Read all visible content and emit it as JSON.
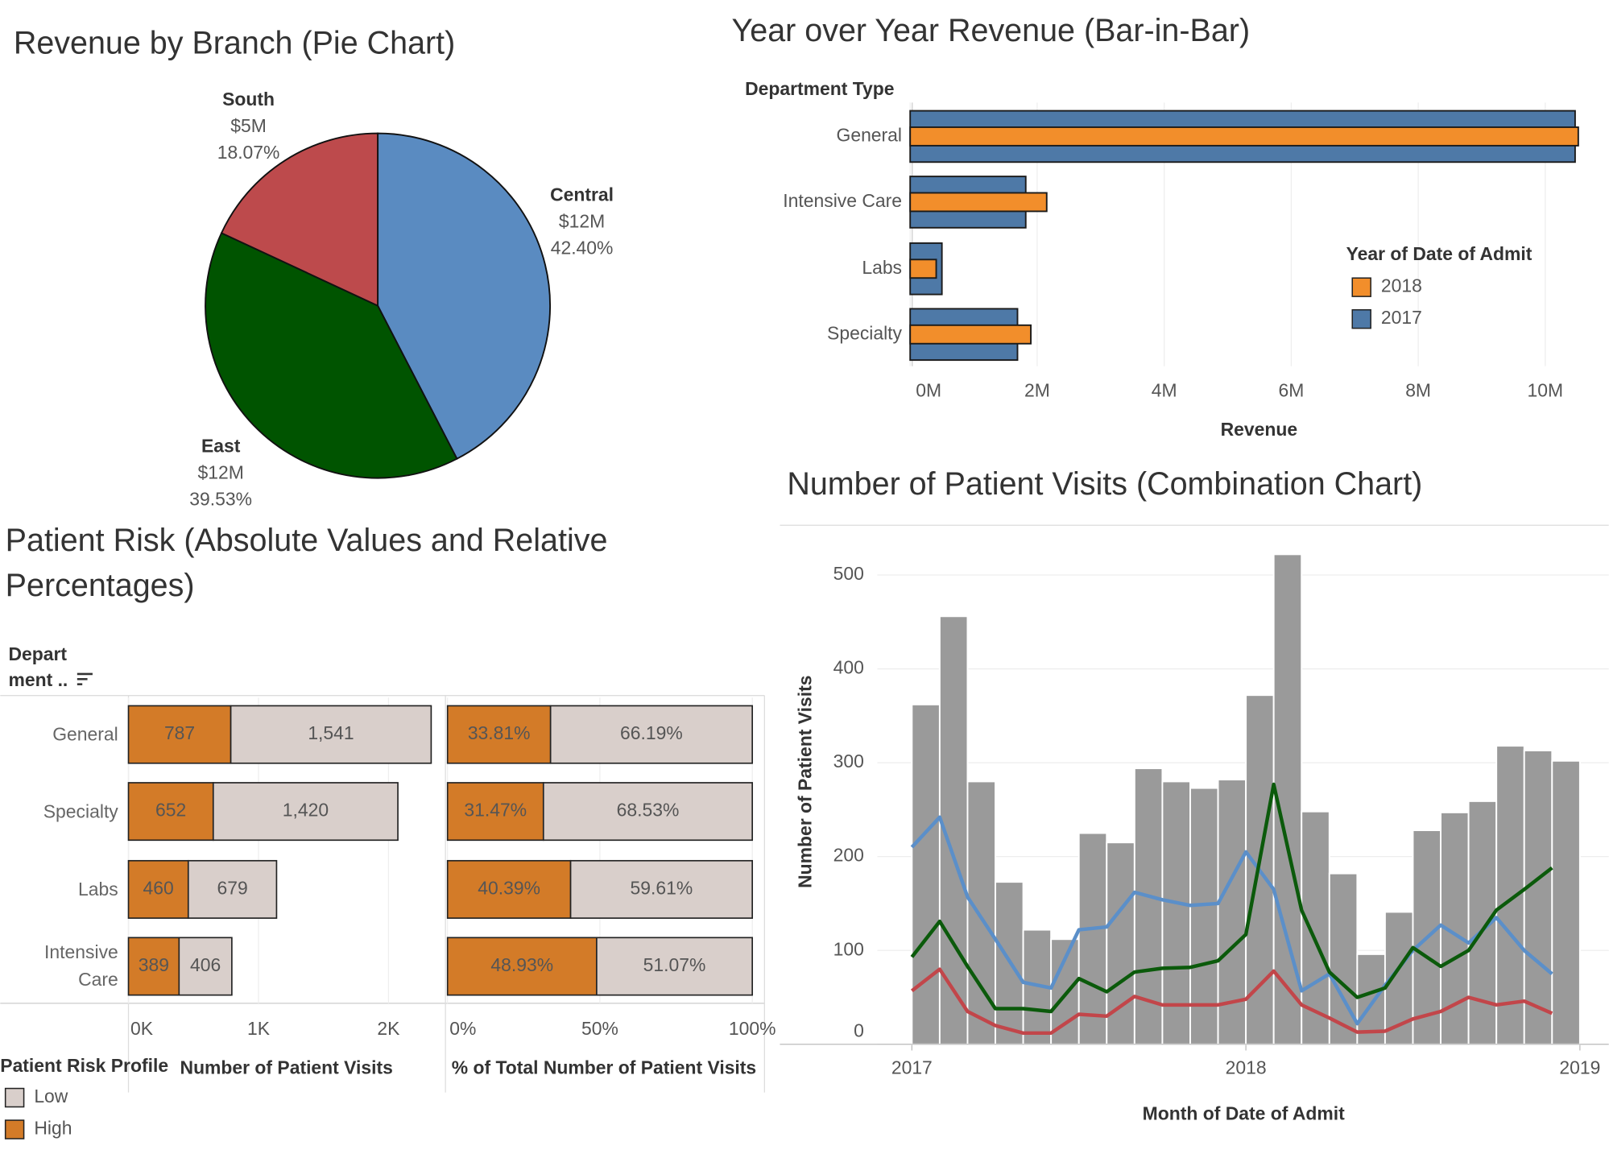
{
  "chart_data": [
    {
      "type": "pie",
      "title": "Revenue by Branch (Pie Chart)",
      "categories": [
        "Central",
        "East",
        "South"
      ],
      "values": [
        42.4,
        39.53,
        18.07
      ],
      "value_labels": [
        "42.40%",
        "39.53%",
        "18.07%"
      ],
      "revenue_labels": [
        "$12M",
        "$12M",
        "$5M"
      ],
      "colors": [
        "#5a8bc1",
        "#005400",
        "#bd4a4c"
      ]
    },
    {
      "type": "bar-in-bar",
      "title": "Year over Year Revenue (Bar-in-Bar)",
      "category_header": "Department Type",
      "x_label": "Revenue",
      "legend_title": "Year of Date of Admit",
      "categories": [
        "General",
        "Intensive Care",
        "Labs",
        "Specialty"
      ],
      "series": [
        {
          "name": "2018",
          "color": "#f28e2b",
          "values": [
            10520000,
            2150000,
            410000,
            1900000
          ]
        },
        {
          "name": "2017",
          "color": "#4e79a7",
          "values": [
            10470000,
            1820000,
            500000,
            1690000
          ]
        }
      ],
      "xlim": [
        0,
        11000000
      ],
      "xticks": [
        {
          "value": 0,
          "label": "0M"
        },
        {
          "value": 2000000,
          "label": "2M"
        },
        {
          "value": 4000000,
          "label": "4M"
        },
        {
          "value": 6000000,
          "label": "6M"
        },
        {
          "value": 8000000,
          "label": "8M"
        },
        {
          "value": 10000000,
          "label": "10M"
        }
      ],
      "grid": true
    },
    {
      "type": "stacked-bar",
      "title": "Patient Risk (Absolute Values and Relative Percentages)",
      "row_header_lines": [
        "Depart",
        "ment .."
      ],
      "x_label": "Number of Patient Visits",
      "legend_title": "Patient Risk Profile",
      "categories": [
        "General",
        "Specialty",
        "Labs",
        "Intensive Care"
      ],
      "series": [
        {
          "name": "High",
          "color": "#d37b28",
          "values": [
            787,
            652,
            460,
            389
          ]
        },
        {
          "name": "Low",
          "color": "#d9cfcb",
          "values": [
            1541,
            1420,
            679,
            406
          ],
          "value_labels": [
            "1,541",
            "1,420",
            "679",
            "406"
          ]
        }
      ],
      "xlim": [
        0,
        2430
      ],
      "xticks": [
        {
          "value": 0,
          "label": "0K"
        },
        {
          "value": 1000,
          "label": "1K"
        },
        {
          "value": 2000,
          "label": "2K"
        }
      ],
      "grid": true
    },
    {
      "type": "stacked-bar",
      "x_label": "% of Total Number of Patient Visits",
      "categories": [
        "General",
        "Specialty",
        "Labs",
        "Intensive Care"
      ],
      "series": [
        {
          "name": "High",
          "color": "#d37b28",
          "values": [
            33.81,
            31.47,
            40.39,
            48.93
          ],
          "value_labels": [
            "33.81%",
            "31.47%",
            "40.39%",
            "48.93%"
          ]
        },
        {
          "name": "Low",
          "color": "#d9cfcb",
          "values": [
            66.19,
            68.53,
            59.61,
            51.07
          ],
          "value_labels": [
            "66.19%",
            "68.53%",
            "59.61%",
            "51.07%"
          ]
        }
      ],
      "xlim": [
        0,
        104
      ],
      "xticks": [
        {
          "value": 0,
          "label": "0%"
        },
        {
          "value": 50,
          "label": "50%"
        },
        {
          "value": 100,
          "label": "100%"
        }
      ],
      "grid": true
    },
    {
      "type": "combo",
      "title": "Number of Patient Visits (Combination Chart)",
      "x_label": "Month of Date of Admit",
      "y_label": "Number of Patient Visits",
      "x": [
        "2017-01",
        "2017-02",
        "2017-03",
        "2017-04",
        "2017-05",
        "2017-06",
        "2017-07",
        "2017-08",
        "2017-09",
        "2017-10",
        "2017-11",
        "2017-12",
        "2018-01",
        "2018-02",
        "2018-03",
        "2018-04",
        "2018-05",
        "2018-06",
        "2018-07",
        "2018-08",
        "2018-09",
        "2018-10",
        "2018-11",
        "2018-12"
      ],
      "series": [
        {
          "kind": "bar",
          "color": "#9a9a9a",
          "values": [
            362,
            456,
            280,
            173,
            122,
            112,
            225,
            215,
            294,
            280,
            273,
            282,
            372,
            522,
            248,
            182,
            96,
            141,
            228,
            247,
            259,
            318,
            313,
            302
          ]
        },
        {
          "kind": "line",
          "color": "#5b8fc9",
          "values": [
            210,
            242,
            157,
            112,
            66,
            60,
            122,
            125,
            162,
            154,
            148,
            150,
            205,
            165,
            57,
            75,
            22,
            63,
            100,
            127,
            108,
            135,
            100,
            75
          ]
        },
        {
          "kind": "line",
          "color": "#0b5a0b",
          "values": [
            93,
            131,
            83,
            38,
            38,
            35,
            70,
            56,
            77,
            81,
            82,
            89,
            117,
            277,
            143,
            77,
            50,
            60,
            103,
            83,
            100,
            143,
            165,
            188
          ]
        },
        {
          "kind": "line",
          "color": "#c2464a",
          "values": [
            57,
            80,
            35,
            20,
            12,
            12,
            32,
            30,
            51,
            42,
            42,
            42,
            48,
            78,
            42,
            28,
            13,
            14,
            27,
            35,
            50,
            42,
            46,
            33
          ]
        }
      ],
      "xlim": [
        "2016-08",
        "2019-02"
      ],
      "xticks": [
        "2017",
        "2018",
        "2019"
      ],
      "ylim": [
        0,
        550
      ],
      "yticks": [
        0,
        100,
        200,
        300,
        400,
        500
      ],
      "grid": true
    }
  ]
}
